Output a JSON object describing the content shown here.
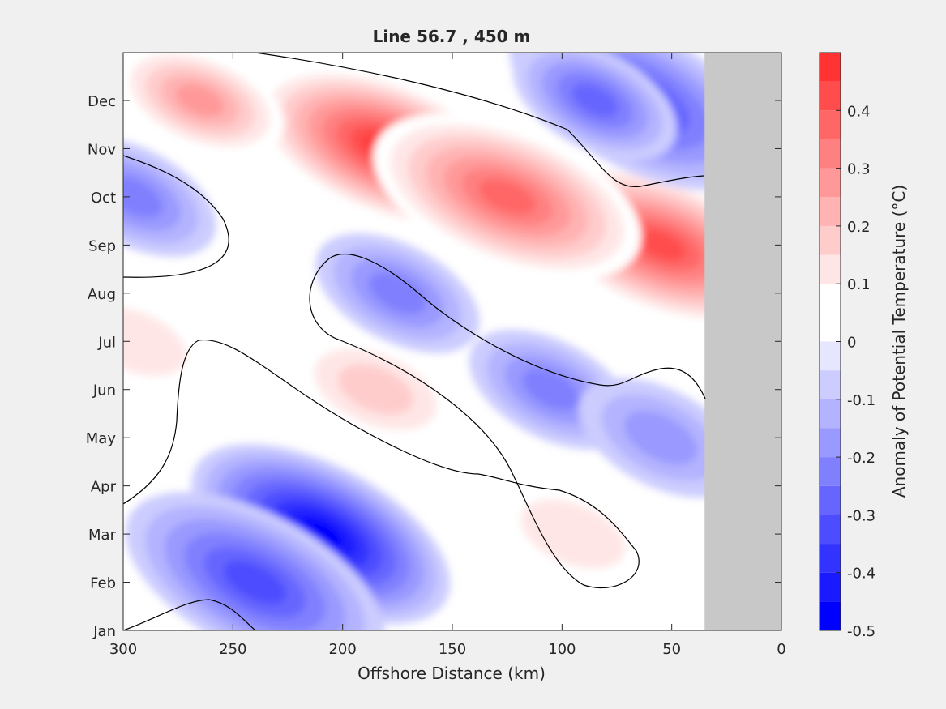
{
  "chart_data": {
    "type": "heatmap",
    "subtype": "filled-contour",
    "title": "Line 56.7 , 450 m",
    "xlabel": "Offshore Distance (km)",
    "ylabel": "",
    "xlim": [
      300,
      0
    ],
    "x_direction": "reversed",
    "x_ticks": [
      300,
      250,
      200,
      150,
      100,
      50,
      0
    ],
    "y_categories": [
      "Jan",
      "Feb",
      "Mar",
      "Apr",
      "May",
      "Jun",
      "Jul",
      "Aug",
      "Sep",
      "Oct",
      "Nov",
      "Dec"
    ],
    "grid": false,
    "masked_region_km": [
      35,
      0
    ],
    "masked_color": "#c8c8c8",
    "zero_contour_color": "#000000",
    "colorbar": {
      "label": "Anomaly of Potential Temperature (°C)",
      "limits": [
        -0.5,
        0.5
      ],
      "ticks": [
        "-0.5",
        "-0.4",
        "-0.3",
        "-0.2",
        "-0.1",
        "0",
        "0.1",
        "0.2",
        "0.3",
        "0.4"
      ],
      "levels": [
        -0.5,
        -0.45,
        -0.4,
        -0.35,
        -0.3,
        -0.25,
        -0.2,
        -0.15,
        -0.1,
        -0.05,
        0,
        0.05,
        0.1,
        0.15,
        0.2,
        0.25,
        0.3,
        0.35,
        0.4,
        0.45,
        0.5
      ],
      "colors": [
        "#0000ff",
        "#1a1aff",
        "#3333ff",
        "#4d4dff",
        "#6666ff",
        "#8080ff",
        "#9999ff",
        "#b3b3ff",
        "#ccccff",
        "#e6e6ff",
        "#ffffff",
        "#ffffff",
        "#ffe6e6",
        "#ffcccc",
        "#ffb3b3",
        "#ff9999",
        "#ff8080",
        "#ff6666",
        "#ff4d4d",
        "#ff3333",
        "#ff1a1a",
        "#ff0000"
      ]
    },
    "features": [
      {
        "kind": "warm",
        "x_km": 180,
        "month": "Nov",
        "peak": 0.45
      },
      {
        "kind": "warm",
        "x_km": 55,
        "month": "Sep",
        "peak": 0.4
      },
      {
        "kind": "warm",
        "x_km": 125,
        "month": "Oct",
        "peak": 0.35
      },
      {
        "kind": "warm",
        "x_km": 265,
        "month": "Dec",
        "peak": 0.25
      },
      {
        "kind": "warm",
        "x_km": 185,
        "month": "Jun",
        "peak": 0.15
      },
      {
        "kind": "warm",
        "x_km": 95,
        "month": "Mar",
        "peak": 0.1
      },
      {
        "kind": "warm",
        "x_km": 295,
        "month": "Jul",
        "peak": 0.1
      },
      {
        "kind": "cold",
        "x_km": 210,
        "month": "Mar",
        "peak": -0.45
      },
      {
        "kind": "cold",
        "x_km": 240,
        "month": "Feb",
        "peak": -0.3
      },
      {
        "kind": "cold",
        "x_km": 65,
        "month": "Dec",
        "peak": -0.3
      },
      {
        "kind": "cold",
        "x_km": 85,
        "month": "Dec",
        "peak": -0.25
      },
      {
        "kind": "cold",
        "x_km": 175,
        "month": "Aug",
        "peak": -0.2
      },
      {
        "kind": "cold",
        "x_km": 105,
        "month": "Jun",
        "peak": -0.2
      },
      {
        "kind": "cold",
        "x_km": 295,
        "month": "Oct",
        "peak": -0.2
      },
      {
        "kind": "cold",
        "x_km": 55,
        "month": "May",
        "peak": -0.15
      }
    ]
  }
}
